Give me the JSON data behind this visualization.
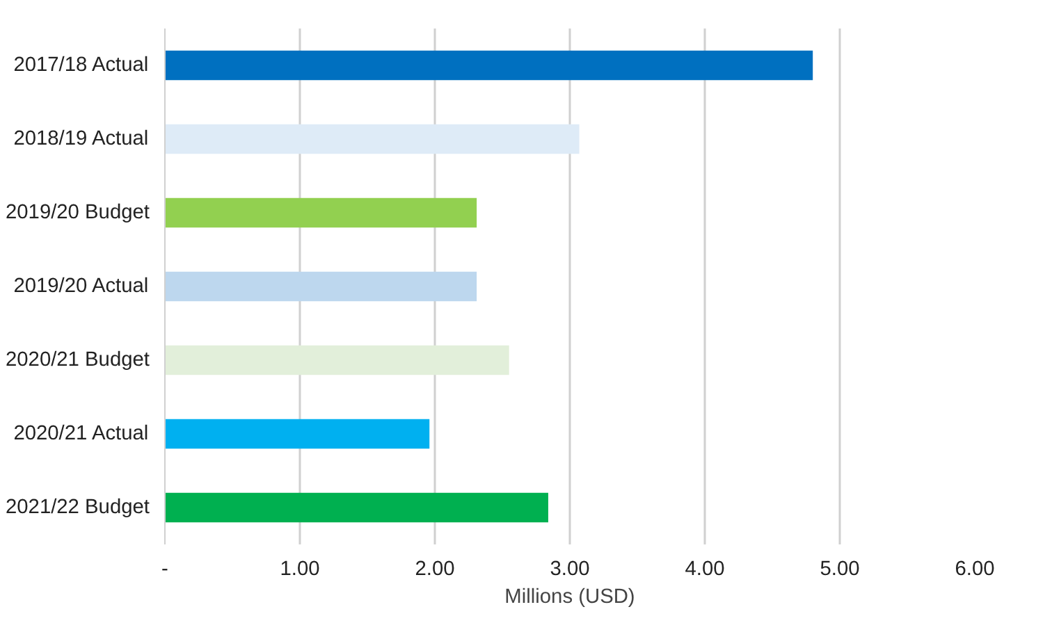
{
  "chart_data": {
    "type": "bar",
    "orientation": "horizontal",
    "xlabel": "Millions (USD)",
    "categories": [
      "2017/18 Actual",
      "2018/19 Actual",
      "2019/20 Budget",
      "2019/20 Actual",
      "2020/21 Budget",
      "2020/21 Actual",
      "2021/22 Budget"
    ],
    "values": [
      4.8,
      3.07,
      2.31,
      2.31,
      2.55,
      1.96,
      2.84
    ],
    "colors": [
      "#0070c0",
      "#deebf7",
      "#92d050",
      "#bdd7ee",
      "#e2efda",
      "#00b0f0",
      "#00b050"
    ],
    "xlim": [
      0,
      6
    ],
    "xticks": [
      {
        "value": 0,
        "label": "-"
      },
      {
        "value": 1,
        "label": "1.00"
      },
      {
        "value": 2,
        "label": "2.00"
      },
      {
        "value": 3,
        "label": "3.00"
      },
      {
        "value": 4,
        "label": "4.00"
      },
      {
        "value": 5,
        "label": "5.00"
      },
      {
        "value": 6,
        "label": "6.00"
      }
    ],
    "grid": "x"
  }
}
